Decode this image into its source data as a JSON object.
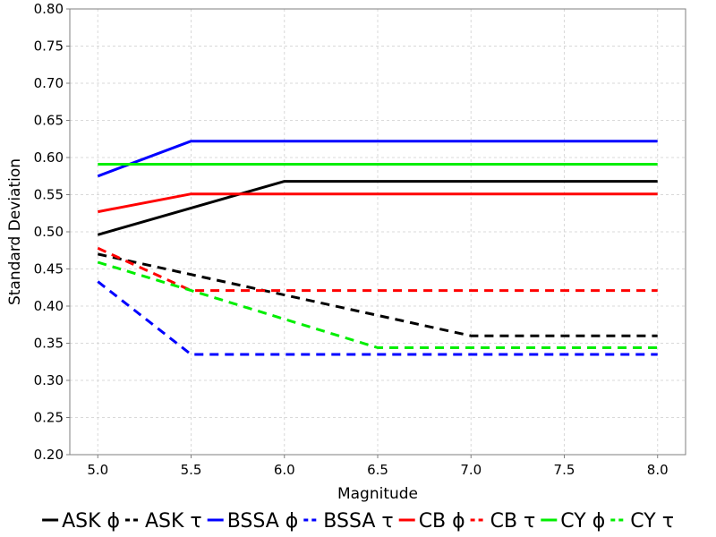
{
  "chart_data": {
    "type": "line",
    "title": "",
    "xlabel": "Magnitude",
    "ylabel": "Standard Deviation",
    "xlim": [
      4.85,
      8.15
    ],
    "ylim": [
      0.2,
      0.8
    ],
    "x_ticks": [
      "5.0",
      "5.5",
      "6.0",
      "6.5",
      "7.0",
      "7.5",
      "8.0"
    ],
    "y_ticks": [
      "0.20",
      "0.25",
      "0.30",
      "0.35",
      "0.40",
      "0.45",
      "0.50",
      "0.55",
      "0.60",
      "0.65",
      "0.70",
      "0.75",
      "0.80"
    ],
    "grid": true,
    "legend_position": "bottom",
    "series": [
      {
        "name": "ASK ϕ",
        "color": "#000000",
        "dash": "solid",
        "x": [
          5.0,
          6.0,
          8.0
        ],
        "y": [
          0.496,
          0.568,
          0.568
        ]
      },
      {
        "name": "ASK τ",
        "color": "#000000",
        "dash": "dashed",
        "x": [
          5.0,
          7.0,
          8.0
        ],
        "y": [
          0.47,
          0.36,
          0.36
        ]
      },
      {
        "name": "BSSA ϕ",
        "color": "#0000ff",
        "dash": "solid",
        "x": [
          5.0,
          5.5,
          8.0
        ],
        "y": [
          0.575,
          0.622,
          0.622
        ]
      },
      {
        "name": "BSSA τ",
        "color": "#0000ff",
        "dash": "dashed",
        "x": [
          5.0,
          5.5,
          8.0
        ],
        "y": [
          0.433,
          0.335,
          0.335
        ]
      },
      {
        "name": "CB ϕ",
        "color": "#ff0000",
        "dash": "solid",
        "x": [
          5.0,
          5.5,
          8.0
        ],
        "y": [
          0.527,
          0.551,
          0.551
        ]
      },
      {
        "name": "CB τ",
        "color": "#ff0000",
        "dash": "dashed",
        "x": [
          5.0,
          5.5,
          8.0
        ],
        "y": [
          0.478,
          0.421,
          0.421
        ]
      },
      {
        "name": "CY ϕ",
        "color": "#00ee00",
        "dash": "solid",
        "x": [
          5.0,
          8.0
        ],
        "y": [
          0.591,
          0.591
        ]
      },
      {
        "name": "CY τ",
        "color": "#00ee00",
        "dash": "dashed",
        "x": [
          5.0,
          5.5,
          6.5,
          8.0
        ],
        "y": [
          0.459,
          0.421,
          0.344,
          0.344
        ]
      }
    ]
  }
}
